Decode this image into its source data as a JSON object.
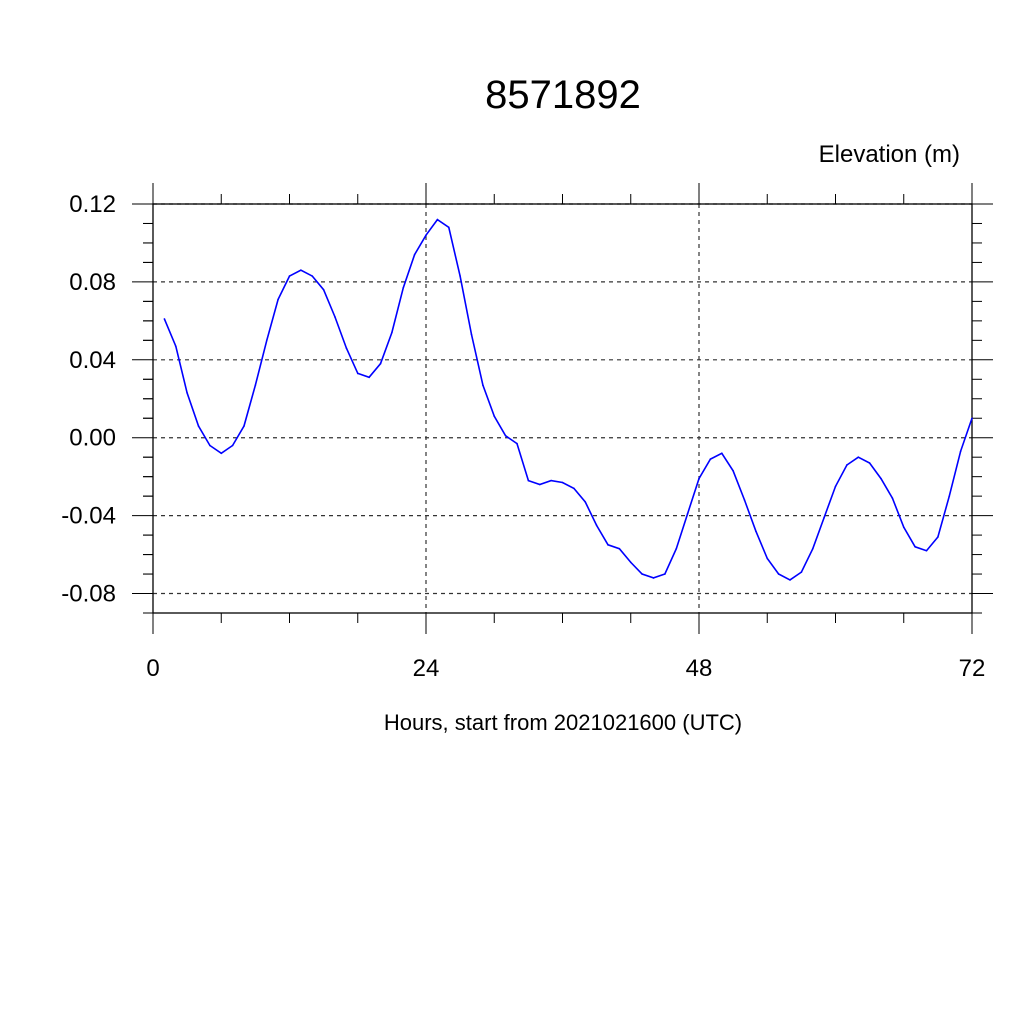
{
  "chart_data": {
    "type": "line",
    "title": "8571892",
    "ylabel": "Elevation (m)",
    "xlabel": "Hours, start from 2021021600 (UTC)",
    "xlim": [
      0,
      72
    ],
    "ylim": [
      -0.09,
      0.12
    ],
    "x_ticks": [
      0,
      24,
      48,
      72
    ],
    "x_tick_labels": [
      "0",
      "24",
      "48",
      "72"
    ],
    "y_ticks": [
      -0.08,
      -0.04,
      0.0,
      0.04,
      0.08,
      0.12
    ],
    "y_tick_labels": [
      "-0.08",
      "-0.04",
      "0.00",
      "0.04",
      "0.08",
      "0.12"
    ],
    "grid": true,
    "series": [
      {
        "color": "#0000ff",
        "x": [
          1,
          2,
          3,
          4,
          5,
          6,
          7,
          8,
          9,
          10,
          11,
          12,
          13,
          14,
          15,
          16,
          17,
          18,
          19,
          20,
          21,
          22,
          23,
          24,
          25,
          26,
          27,
          28,
          29,
          30,
          31,
          32,
          33,
          34,
          35,
          36,
          37,
          38,
          39,
          40,
          41,
          42,
          43,
          44,
          45,
          46,
          47,
          48,
          49,
          50,
          51,
          52,
          53,
          54,
          55,
          56,
          57,
          58,
          59,
          60,
          61,
          62,
          63,
          64,
          65,
          66,
          67,
          68,
          69,
          70,
          71,
          72
        ],
        "y": [
          0.061,
          0.047,
          0.023,
          0.006,
          -0.004,
          -0.008,
          -0.004,
          0.006,
          0.027,
          0.05,
          0.071,
          0.083,
          0.086,
          0.083,
          0.076,
          0.062,
          0.046,
          0.033,
          0.031,
          0.038,
          0.054,
          0.077,
          0.094,
          0.104,
          0.112,
          0.108,
          0.083,
          0.053,
          0.027,
          0.011,
          0.001,
          -0.003,
          -0.022,
          -0.024,
          -0.022,
          -0.023,
          -0.026,
          -0.033,
          -0.045,
          -0.055,
          -0.057,
          -0.064,
          -0.07,
          -0.072,
          -0.07,
          -0.057,
          -0.039,
          -0.021,
          -0.011,
          -0.008,
          -0.017,
          -0.032,
          -0.048,
          -0.062,
          -0.07,
          -0.073,
          -0.069,
          -0.057,
          -0.041,
          -0.025,
          -0.014,
          -0.01,
          -0.013,
          -0.021,
          -0.031,
          -0.046,
          -0.056,
          -0.058,
          -0.051,
          -0.03,
          -0.007,
          0.01
        ]
      }
    ]
  }
}
